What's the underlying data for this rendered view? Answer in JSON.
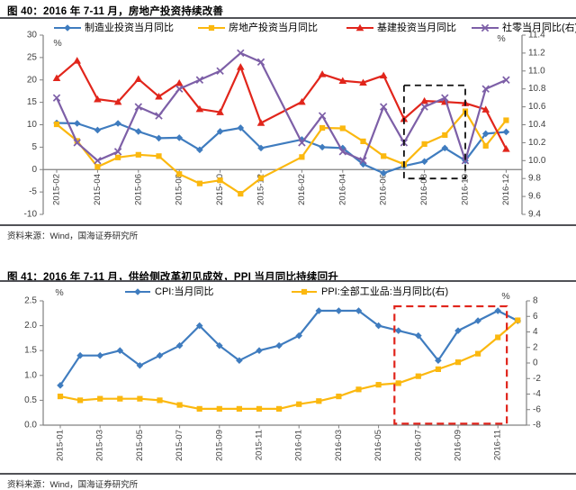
{
  "page": {
    "background": "#ffffff"
  },
  "chart_data": [
    {
      "id": "fig40",
      "type": "line",
      "title": "图 40：2016 年 7-11 月，房地产投资持续改善",
      "source": "资料来源：Wind，国海证券研究所",
      "x": [
        "2015-02",
        "2015-03",
        "2015-04",
        "2015-05",
        "2015-06",
        "2015-07",
        "2015-08",
        "2015-09",
        "2015-10",
        "2015-11",
        "2015-12",
        "2016-01",
        "2016-02",
        "2016-03",
        "2016-04",
        "2016-05",
        "2016-06",
        "2016-07",
        "2016-08",
        "2016-09",
        "2016-10",
        "2016-11",
        "2016-12"
      ],
      "x_tick_labels": [
        "2015-02",
        "2015-04",
        "2015-06",
        "2015-08",
        "2015-10",
        "2015-12",
        "2016-02",
        "2016-04",
        "2016-06",
        "2016-08",
        "2016-10",
        "2016-12"
      ],
      "x_tick_step": 2,
      "left_axis": {
        "unit": "%",
        "min": -10,
        "max": 30,
        "tick_labels": [
          "30",
          "25",
          "20",
          "15",
          "10",
          "5",
          "0",
          "-5",
          "-10"
        ]
      },
      "right_axis": {
        "unit": "%",
        "min": 9.4,
        "max": 11.4,
        "tick_labels": [
          "11.4",
          "11.2",
          "11.0",
          "10.8",
          "10.6",
          "10.4",
          "10.2",
          "10.0",
          "9.8",
          "9.6",
          "9.4"
        ]
      },
      "series": [
        {
          "key": "manufacturing-investment",
          "name": "制造业投资当月同比",
          "color": "#3f7cbf",
          "marker": "diamond",
          "axis": "left",
          "values": [
            10.4,
            10.3,
            8.8,
            10.3,
            8.5,
            7.0,
            7.1,
            4.4,
            8.5,
            9.3,
            4.8,
            null,
            6.7,
            5.0,
            4.8,
            1.2,
            -0.8,
            0.8,
            1.8,
            4.8,
            2.0,
            8.0,
            8.4
          ]
        },
        {
          "key": "real-estate-investment",
          "name": "房地产投资当月同比",
          "color": "#fbb80f",
          "marker": "square",
          "axis": "left",
          "values": [
            10.1,
            6.4,
            0.6,
            2.7,
            3.3,
            3.0,
            -1.0,
            -3.1,
            -2.4,
            -5.4,
            -1.9,
            null,
            2.8,
            9.3,
            9.2,
            6.3,
            3.0,
            1.2,
            5.7,
            7.7,
            13.0,
            5.3,
            11.0
          ]
        },
        {
          "key": "infrastructure-investment",
          "name": "基建投资当月同比",
          "color": "#e1251b",
          "marker": "triangle",
          "axis": "left",
          "values": [
            20.4,
            24.3,
            15.7,
            15.1,
            20.2,
            16.3,
            19.3,
            13.5,
            12.8,
            22.9,
            10.4,
            null,
            15.1,
            21.3,
            19.8,
            19.4,
            21.0,
            11.3,
            15.3,
            15.1,
            14.8,
            13.4,
            4.6
          ]
        },
        {
          "key": "retail-sales",
          "name": "社零当月同比(右)",
          "color": "#7d5fa7",
          "marker": "x",
          "axis": "right",
          "values": [
            10.7,
            10.2,
            10.0,
            10.1,
            10.6,
            10.5,
            10.8,
            10.9,
            11.0,
            11.2,
            11.1,
            null,
            10.2,
            10.5,
            10.1,
            10.0,
            10.6,
            10.2,
            10.6,
            10.7,
            10.0,
            10.8,
            10.9
          ]
        }
      ],
      "highlight_box": {
        "from_x_index": 17,
        "to_x_index": 20,
        "top_value": 18.8,
        "bottom_value": -2.0,
        "value_axis": "left",
        "color": "#111111",
        "stroke_width": 1.8,
        "dash": "7 5"
      }
    },
    {
      "id": "fig41",
      "type": "line",
      "title": "图 41：2016 年 7-11 月，供给侧改革初见成效，PPI 当月同比持续回升",
      "source": "资料来源：Wind，国海证券研究所",
      "x": [
        "2015-01",
        "2015-02",
        "2015-03",
        "2015-04",
        "2015-05",
        "2015-06",
        "2015-07",
        "2015-08",
        "2015-09",
        "2015-10",
        "2015-11",
        "2015-12",
        "2016-01",
        "2016-02",
        "2016-03",
        "2016-04",
        "2016-05",
        "2016-06",
        "2016-07",
        "2016-08",
        "2016-09",
        "2016-10",
        "2016-11",
        "2016-12"
      ],
      "x_tick_labels": [
        "2015-01",
        "2015-03",
        "2015-05",
        "2015-07",
        "2015-09",
        "2015-11",
        "2016-01",
        "2016-03",
        "2016-05",
        "2016-07",
        "2016-09",
        "2016-11"
      ],
      "x_tick_step": 2,
      "left_axis": {
        "unit": "%",
        "min": 0,
        "max": 2.5,
        "tick_labels": [
          "2.5",
          "2.0",
          "1.5",
          "1.0",
          "0.5",
          "0.0"
        ]
      },
      "right_axis": {
        "unit": "%",
        "min": -8,
        "max": 8,
        "tick_labels": [
          "8",
          "6",
          "4",
          "2",
          "0",
          "-2",
          "-4",
          "-6",
          "-8"
        ]
      },
      "series": [
        {
          "key": "cpi",
          "name": "CPI:当月同比",
          "color": "#3f7cbf",
          "marker": "diamond",
          "axis": "left",
          "values": [
            0.8,
            1.4,
            1.4,
            1.5,
            1.2,
            1.4,
            1.6,
            2.0,
            1.6,
            1.3,
            1.5,
            1.6,
            1.8,
            2.3,
            2.3,
            2.3,
            2.0,
            1.9,
            1.8,
            1.3,
            1.9,
            2.1,
            2.3,
            2.1
          ]
        },
        {
          "key": "ppi",
          "name": "PPI:全部工业品:当月同比(右)",
          "color": "#fbb80f",
          "marker": "square",
          "axis": "right",
          "values": [
            -4.3,
            -4.8,
            -4.6,
            -4.6,
            -4.6,
            -4.8,
            -5.4,
            -5.9,
            -5.9,
            -5.9,
            -5.9,
            -5.9,
            -5.3,
            -4.9,
            -4.3,
            -3.4,
            -2.8,
            -2.6,
            -1.7,
            -0.8,
            0.1,
            1.2,
            3.3,
            5.5
          ]
        }
      ],
      "highlight_box": {
        "from_x_index": 16.8,
        "to_x_index": 22.45,
        "top_value": 2.39,
        "bottom_value": 0.03,
        "value_axis": "left",
        "color": "#e0241b",
        "stroke_width": 2.2,
        "dash": "8 5"
      }
    }
  ]
}
